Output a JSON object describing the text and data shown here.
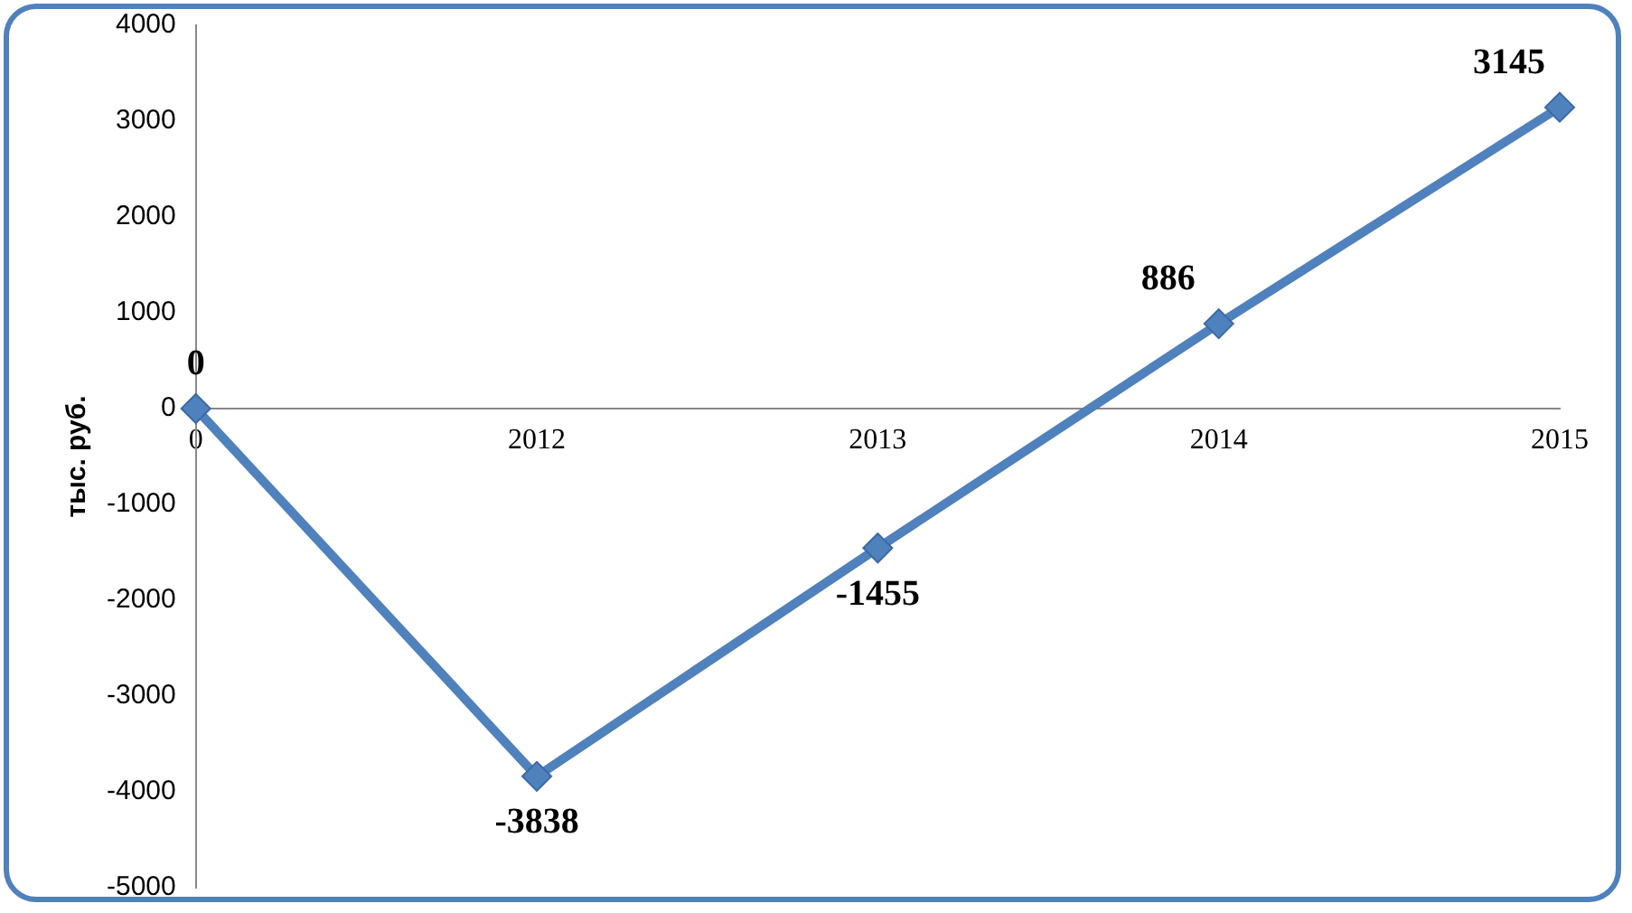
{
  "chart_data": {
    "type": "line",
    "ylabel": "тыс. руб.",
    "categories": [
      "0",
      "2012",
      "2013",
      "2014",
      "2015"
    ],
    "series": [
      {
        "color": "#4f81bd",
        "values": [
          0,
          -3838,
          -1455,
          886,
          3145
        ]
      }
    ],
    "ylim": [
      -5000,
      4000
    ],
    "yticks": [
      -5000,
      -4000,
      -3000,
      -2000,
      -1000,
      0,
      1000,
      2000,
      3000,
      4000
    ],
    "grid": false,
    "legend": false,
    "marker": "diamond",
    "line_style": "solid",
    "data_labels": true
  }
}
